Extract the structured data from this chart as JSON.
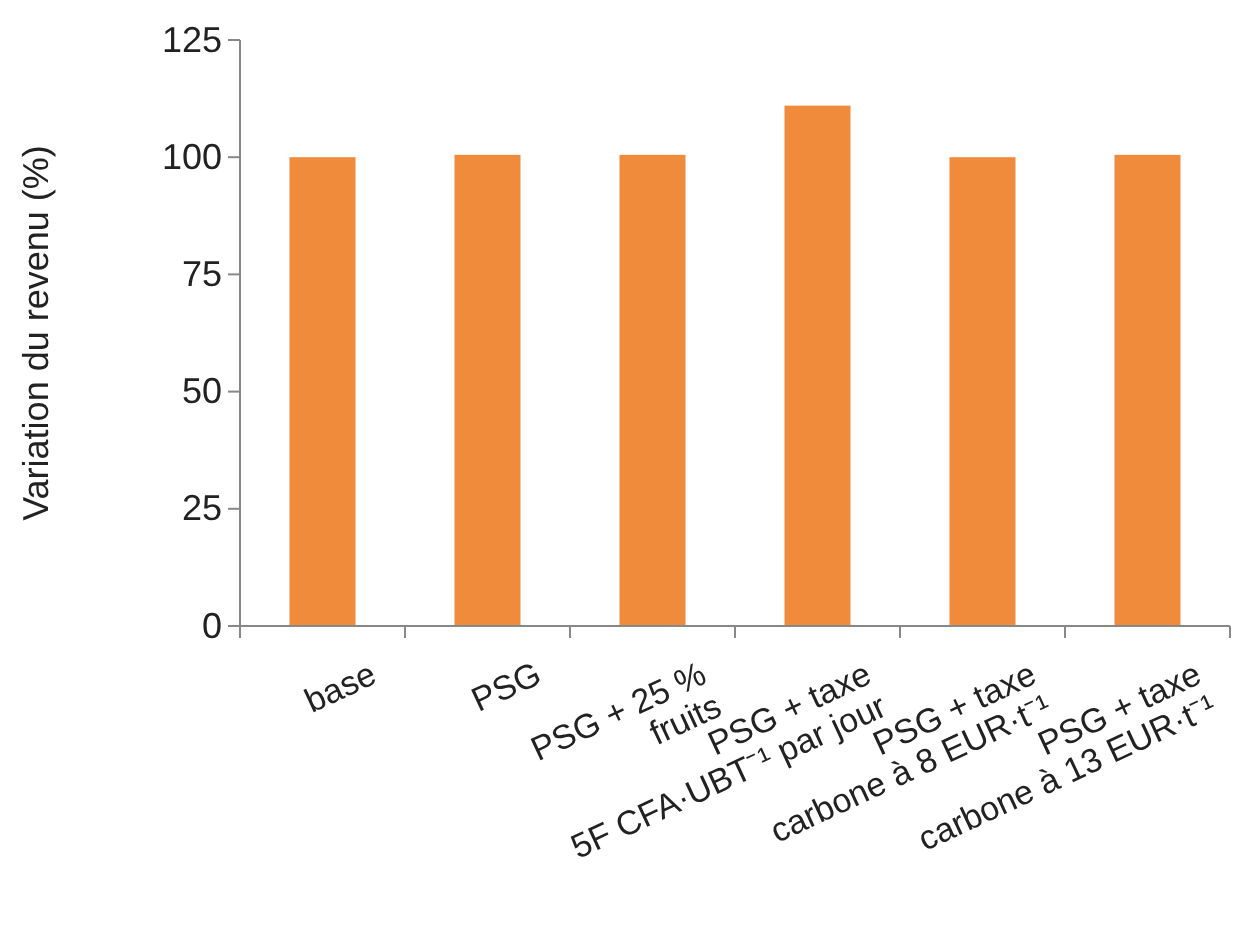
{
  "chart_data": {
    "type": "bar",
    "ylabel": "Variation du revenu (%)",
    "categories": [
      "base",
      "PSG",
      "PSG + 25 %\nfruits",
      "PSG + taxe\n5F CFA·UBT⁻¹ par jour",
      "PSG + taxe\ncarbone à 8 EUR·t⁻¹",
      "PSG + taxe\ncarbone à 13 EUR·t⁻¹"
    ],
    "values": [
      100,
      100.5,
      100.5,
      111,
      100,
      100.5
    ],
    "color": "#f08b3c",
    "ylim": [
      0,
      125
    ],
    "yticks": [
      0,
      25,
      50,
      75,
      100,
      125
    ],
    "grid": false
  }
}
